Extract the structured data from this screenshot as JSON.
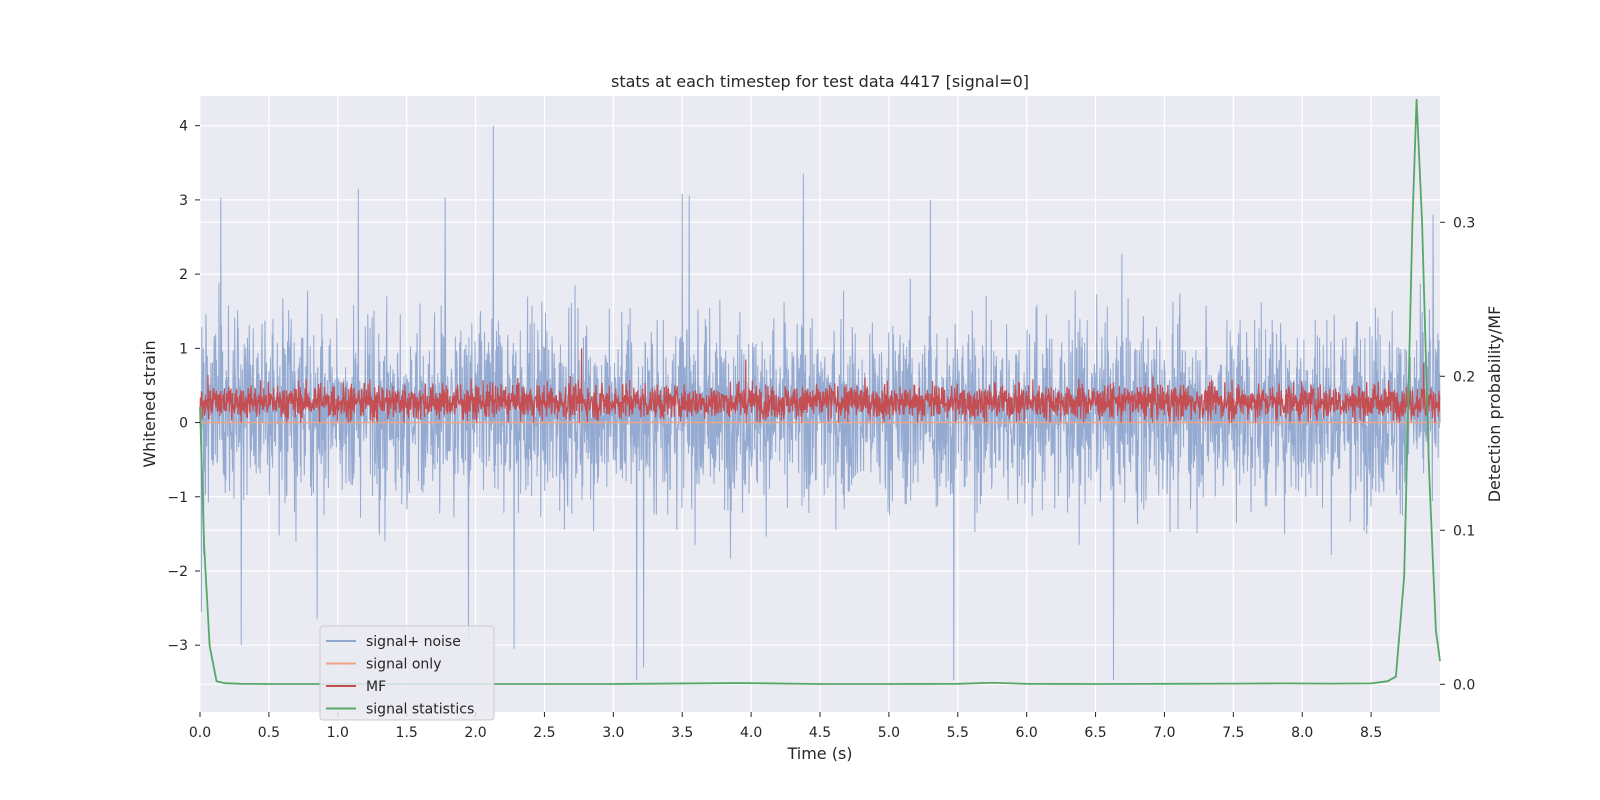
{
  "chart_data": {
    "type": "line",
    "title": "stats at each timestep for test data 4417 [signal=0]",
    "xlabel": "Time (s)",
    "ylabel": "Whitened strain",
    "y2label": "Detection probability/MF",
    "xlim": [
      0.0,
      9.0
    ],
    "ylim": [
      -3.9,
      4.4
    ],
    "y2lim": [
      -0.018,
      0.382
    ],
    "x_ticks": [
      0.0,
      0.5,
      1.0,
      1.5,
      2.0,
      2.5,
      3.0,
      3.5,
      4.0,
      4.5,
      5.0,
      5.5,
      6.0,
      6.5,
      7.0,
      7.5,
      8.0,
      8.5
    ],
    "x_tick_labels": [
      "0.0",
      "0.5",
      "1.0",
      "1.5",
      "2.0",
      "2.5",
      "3.0",
      "3.5",
      "4.0",
      "4.5",
      "5.0",
      "5.5",
      "6.0",
      "6.5",
      "7.0",
      "7.5",
      "8.0",
      "8.5"
    ],
    "y_ticks": [
      -3,
      -2,
      -1,
      0,
      1,
      2,
      3,
      4
    ],
    "y_tick_labels": [
      "−3",
      "−2",
      "−1",
      "0",
      "1",
      "2",
      "3",
      "4"
    ],
    "y2_ticks": [
      0.0,
      0.1,
      0.2,
      0.3
    ],
    "y2_tick_labels": [
      "0.0",
      "0.1",
      "0.2",
      "0.3"
    ],
    "grid": true,
    "legend_position": "lower-left",
    "series": [
      {
        "name": "signal+ noise",
        "axis": "left",
        "color": "#8fa6cf",
        "style": "dense noise",
        "x_range": [
          0.0,
          9.0
        ],
        "typical_range": [
          -1.6,
          2.0
        ],
        "extreme_range": [
          -3.5,
          4.0
        ],
        "peaks": [
          {
            "x": 2.13,
            "y": 4.0
          },
          {
            "x": 4.38,
            "y": 3.35
          },
          {
            "x": 1.15,
            "y": 3.15
          },
          {
            "x": 3.5,
            "y": 3.08
          },
          {
            "x": 3.55,
            "y": 3.06
          },
          {
            "x": 0.15,
            "y": 3.03
          },
          {
            "x": 1.78,
            "y": 3.03
          },
          {
            "x": 5.3,
            "y": 3.0
          },
          {
            "x": 8.95,
            "y": 2.8
          }
        ],
        "troughs": [
          {
            "x": 3.17,
            "y": -3.47
          },
          {
            "x": 5.47,
            "y": -3.47
          },
          {
            "x": 6.63,
            "y": -3.47
          },
          {
            "x": 3.22,
            "y": -3.3
          },
          {
            "x": 0.3,
            "y": -3.0
          },
          {
            "x": 2.28,
            "y": -3.05
          },
          {
            "x": 1.95,
            "y": -2.95
          },
          {
            "x": 0.85,
            "y": -2.65
          },
          {
            "x": 0.01,
            "y": -2.55
          }
        ]
      },
      {
        "name": "signal only",
        "axis": "left",
        "color": "#eda586",
        "values_note": "zero signal",
        "x": [
          0.0,
          9.0
        ],
        "y": [
          0.0,
          0.0
        ]
      },
      {
        "name": "MF",
        "axis": "left",
        "color": "#c44e52",
        "style": "dense noise",
        "x_range": [
          0.0,
          9.0
        ],
        "typical_range": [
          0.0,
          0.6
        ],
        "peaks": [
          {
            "x": 2.77,
            "y": 1.0
          },
          {
            "x": 3.96,
            "y": 0.85
          },
          {
            "x": 8.88,
            "y": 0.8
          }
        ]
      },
      {
        "name": "signal statistics",
        "axis": "right",
        "color": "#55a868",
        "x": [
          0.0,
          0.03,
          0.07,
          0.12,
          0.18,
          0.3,
          0.5,
          1.0,
          2.0,
          3.0,
          3.9,
          4.5,
          5.0,
          5.5,
          5.75,
          6.0,
          6.5,
          7.0,
          7.5,
          7.85,
          8.2,
          8.5,
          8.62,
          8.68,
          8.74,
          8.8,
          8.83,
          8.87,
          8.92,
          8.97,
          9.0
        ],
        "y": [
          0.18,
          0.09,
          0.025,
          0.002,
          0.0007,
          0.0003,
          0.0002,
          0.0002,
          0.0002,
          0.0002,
          0.0008,
          0.0002,
          0.0002,
          0.0003,
          0.001,
          0.0003,
          0.0002,
          0.0003,
          0.0004,
          0.0006,
          0.0004,
          0.0006,
          0.002,
          0.005,
          0.07,
          0.3,
          0.38,
          0.3,
          0.14,
          0.035,
          0.015
        ]
      }
    ]
  }
}
